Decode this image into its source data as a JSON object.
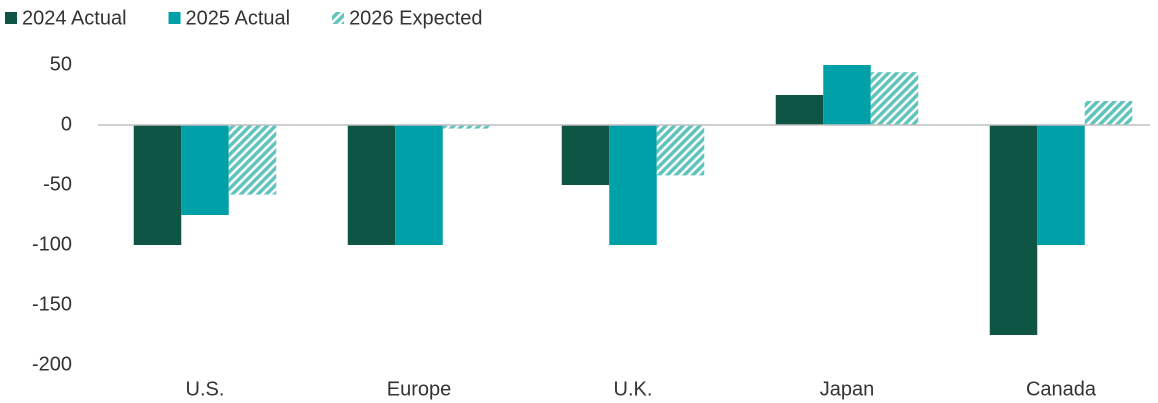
{
  "chart_data": {
    "type": "bar",
    "categories": [
      "U.S.",
      "Europe",
      "U.K.",
      "Japan",
      "Canada"
    ],
    "series": [
      {
        "name": "2024 Actual",
        "color": "#0f5546",
        "values": [
          -100,
          -100,
          -50,
          25,
          -175
        ]
      },
      {
        "name": "2025 Actual",
        "color": "#00a0a8",
        "values": [
          -75,
          -100,
          -100,
          50,
          -100
        ]
      },
      {
        "name": "2026 Expected",
        "color": "#5ec4bd",
        "pattern": "hatch",
        "values": [
          -58,
          -3,
          -42,
          44,
          20
        ]
      }
    ],
    "ylim": [
      -200,
      50
    ],
    "yticks": [
      -200,
      -150,
      -100,
      -50,
      0,
      50
    ],
    "legend": "top-left"
  }
}
